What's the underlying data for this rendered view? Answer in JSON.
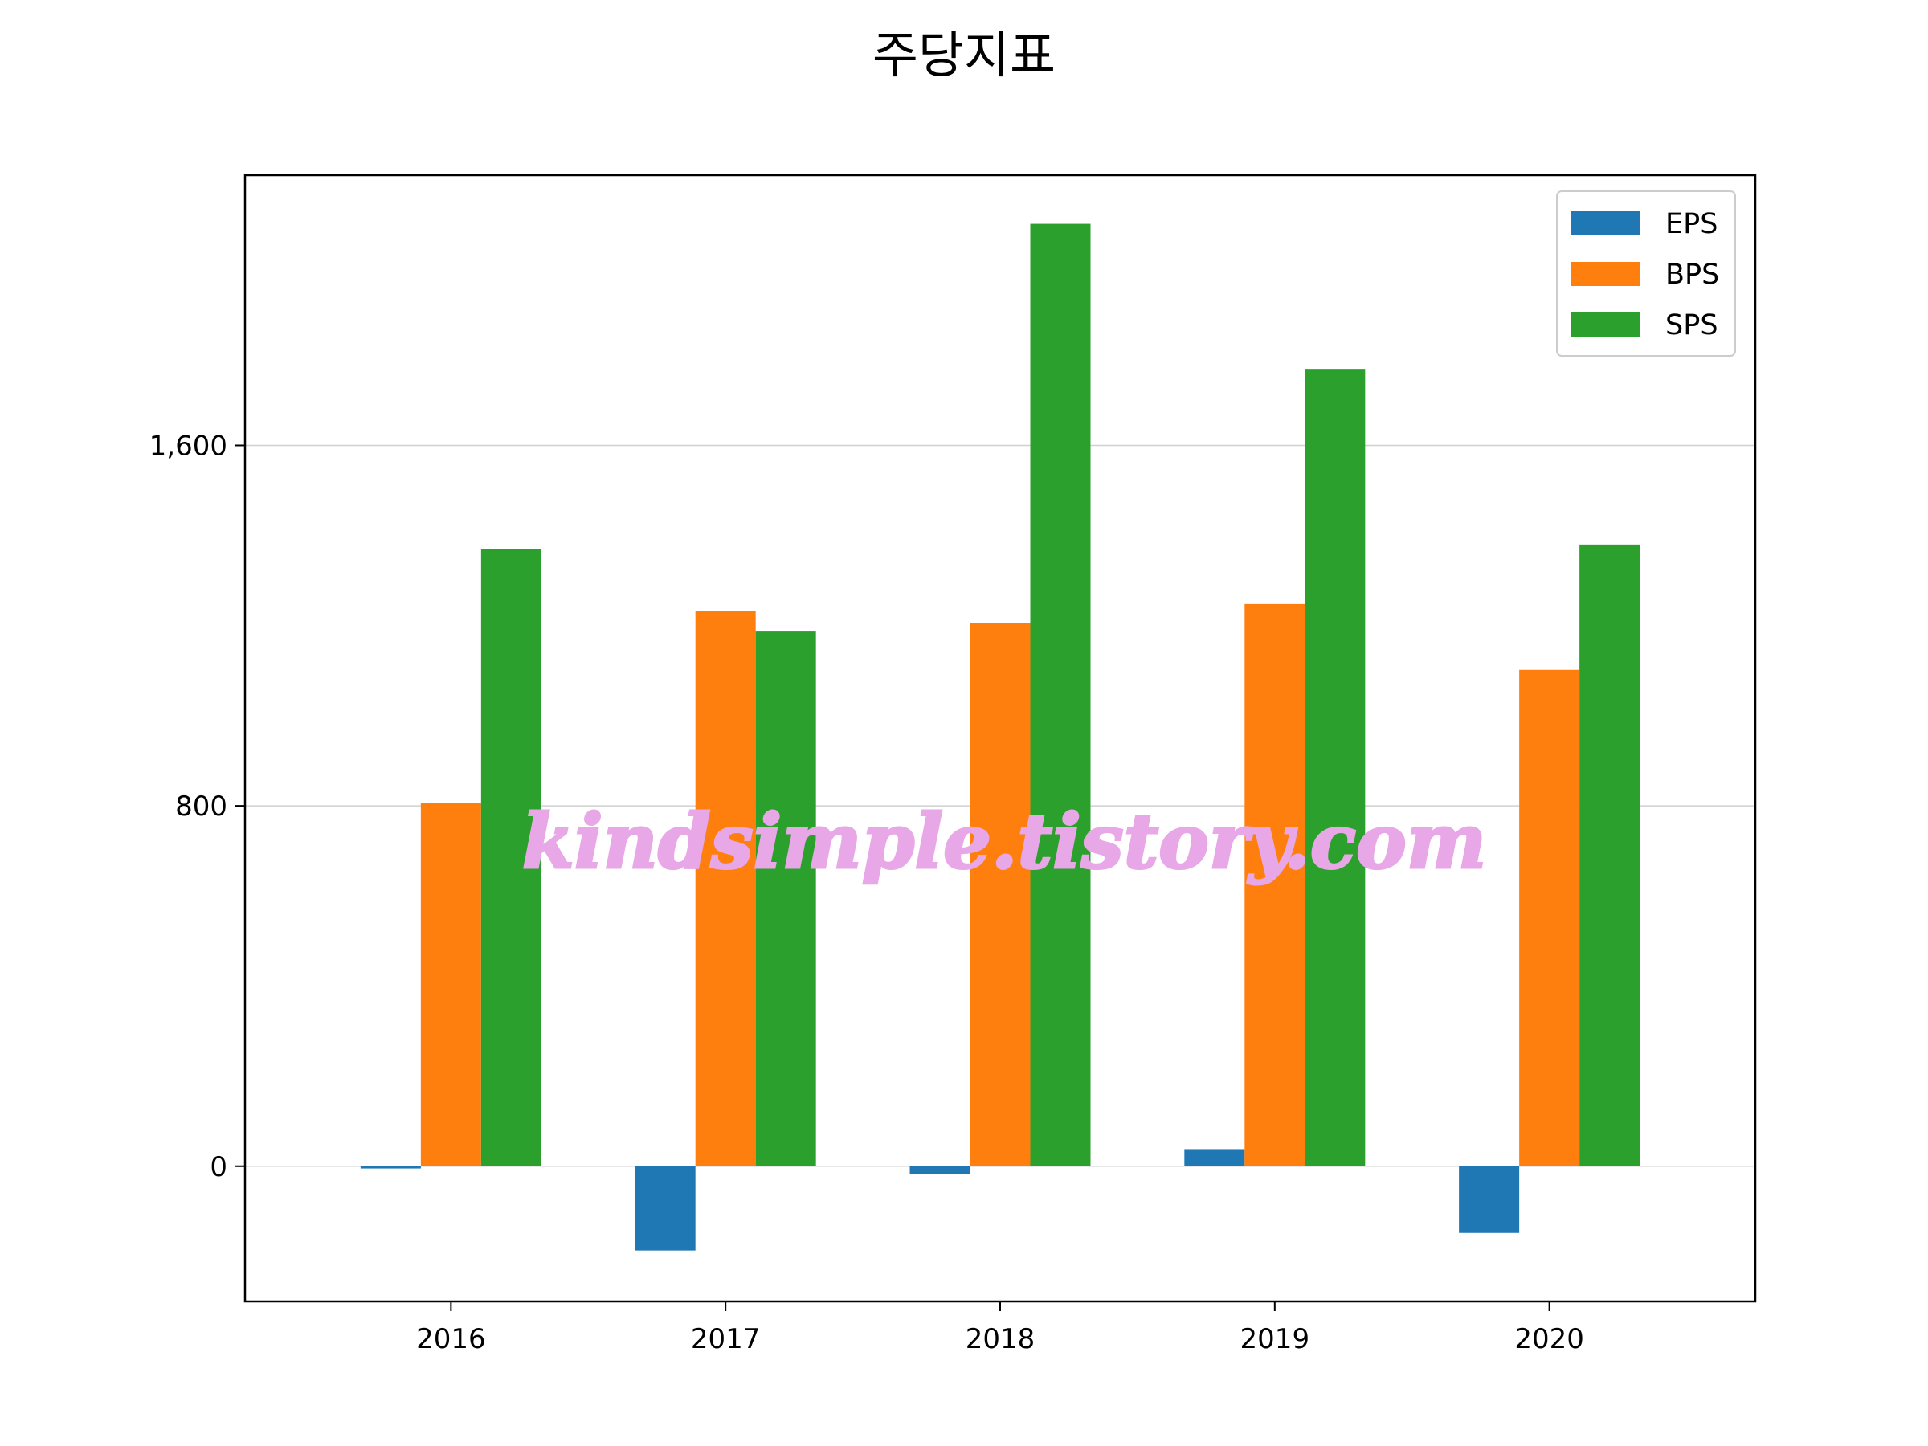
{
  "chart_data": {
    "type": "bar",
    "title": "주당지표",
    "xlabel": "",
    "ylabel": "",
    "categories": [
      "2016",
      "2017",
      "2018",
      "2019",
      "2020"
    ],
    "series": [
      {
        "name": "EPS",
        "color": "#1f77b4",
        "values": [
          -5,
          -187,
          -18,
          38,
          -148
        ]
      },
      {
        "name": "BPS",
        "color": "#ff7f0e",
        "values": [
          806,
          1232,
          1206,
          1248,
          1102
        ]
      },
      {
        "name": "SPS",
        "color": "#2ca02c",
        "values": [
          1370,
          1187,
          2092,
          1770,
          1380
        ]
      }
    ],
    "yticks": [
      0,
      800,
      1600
    ],
    "ytick_labels": [
      "0",
      "800",
      "1,600"
    ],
    "ylim": [
      -300,
      2200
    ],
    "grid": "horizontal",
    "legend_position": "top-right"
  },
  "watermark": "kindsimple.tistory.com"
}
